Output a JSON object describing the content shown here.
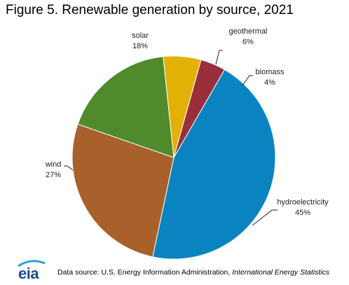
{
  "title": "Figure 5. Renewable generation by source, 2021",
  "footer": {
    "prefix": "Data source: U.S. Energy Information Administration, ",
    "source": "International Energy Statistics"
  },
  "logo": {
    "text": "eia"
  },
  "chart_data": {
    "type": "pie",
    "title": "Figure 5. Renewable generation by source, 2021",
    "slices": [
      {
        "name": "hydroelectricity",
        "value": 45,
        "label": "45%",
        "color": "#0a84c0"
      },
      {
        "name": "wind",
        "value": 27,
        "label": "27%",
        "color": "#a8612a"
      },
      {
        "name": "solar",
        "value": 18,
        "label": "18%",
        "color": "#4f8a2b"
      },
      {
        "name": "geothermal",
        "value": 6,
        "label": "6%",
        "color": "#e3b106"
      },
      {
        "name": "biomass",
        "value": 4,
        "label": "4%",
        "color": "#9a2e3b"
      }
    ]
  }
}
